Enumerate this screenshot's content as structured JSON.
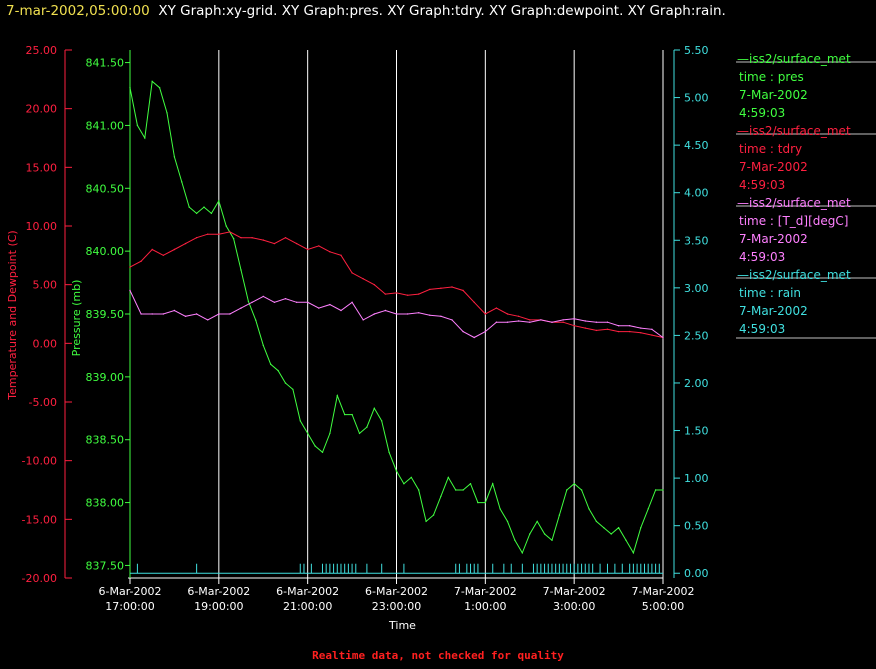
{
  "header": {
    "datetime": "7-mar-2002,05:00:00",
    "graph_list": "XY Graph:xy-grid.  XY Graph:pres.  XY Graph:tdry.  XY Graph:dewpoint.  XY Graph:rain."
  },
  "footer": {
    "note": "Realtime data, not checked for quality"
  },
  "colors": {
    "pres": "#40ff40",
    "tdry": "#ff2040",
    "dewpoint": "#ff80ff",
    "rain": "#40e0e0",
    "grid": "#ffffff"
  },
  "chart_data": {
    "type": "line",
    "xlabel": "Time",
    "x_range": [
      "6-Mar-2002 17:00:00",
      "7-Mar-2002 05:00:00"
    ],
    "x_ticks": [
      {
        "date": "6-Mar-2002",
        "time": "17:00:00"
      },
      {
        "date": "6-Mar-2002",
        "time": "19:00:00"
      },
      {
        "date": "6-Mar-2002",
        "time": "21:00:00"
      },
      {
        "date": "6-Mar-2002",
        "time": "23:00:00"
      },
      {
        "date": "7-Mar-2002",
        "time": "1:00:00"
      },
      {
        "date": "7-Mar-2002",
        "time": "3:00:00"
      },
      {
        "date": "7-Mar-2002",
        "time": "5:00:00"
      }
    ],
    "grid": true,
    "axes": {
      "temperature": {
        "label": "Temperature and Dewpoint (C)",
        "ylim": [
          -20,
          25
        ],
        "ticks": [
          "25.00",
          "20.00",
          "15.00",
          "10.00",
          "5.00",
          "0.00",
          "-5.00",
          "-10.00",
          "-15.00",
          "-20.00"
        ]
      },
      "pressure": {
        "label": "Pressure (mb)",
        "ylim": [
          837.4,
          841.6
        ],
        "ticks": [
          "841.50",
          "841.00",
          "840.50",
          "840.00",
          "839.50",
          "839.00",
          "838.50",
          "838.00",
          "837.50"
        ]
      },
      "rain": {
        "label": "",
        "ylim": [
          -0.05,
          5.5
        ],
        "ticks": [
          "5.50",
          "5.00",
          "4.50",
          "4.00",
          "3.50",
          "3.00",
          "2.50",
          "2.00",
          "1.50",
          "1.00",
          "0.50",
          "0.00"
        ]
      }
    },
    "series": [
      {
        "name": "pres",
        "axis": "pressure",
        "legend": [
          "iss2/surface_met",
          "time : pres",
          "7-Mar-2002",
          "4:59:03"
        ],
        "x": [
          "6-Mar-2002 17:00",
          "6-Mar-2002 17:10",
          "6-Mar-2002 17:20",
          "6-Mar-2002 17:30",
          "6-Mar-2002 17:40",
          "6-Mar-2002 17:50",
          "6-Mar-2002 18:00",
          "6-Mar-2002 18:10",
          "6-Mar-2002 18:20",
          "6-Mar-2002 18:30",
          "6-Mar-2002 18:40",
          "6-Mar-2002 18:50",
          "6-Mar-2002 19:00",
          "6-Mar-2002 19:10",
          "6-Mar-2002 19:20",
          "6-Mar-2002 19:30",
          "6-Mar-2002 19:40",
          "6-Mar-2002 19:50",
          "6-Mar-2002 20:00",
          "6-Mar-2002 20:10",
          "6-Mar-2002 20:20",
          "6-Mar-2002 20:30",
          "6-Mar-2002 20:40",
          "6-Mar-2002 20:50",
          "6-Mar-2002 21:00",
          "6-Mar-2002 21:10",
          "6-Mar-2002 21:20",
          "6-Mar-2002 21:30",
          "6-Mar-2002 21:40",
          "6-Mar-2002 21:50",
          "6-Mar-2002 22:00",
          "6-Mar-2002 22:10",
          "6-Mar-2002 22:20",
          "6-Mar-2002 22:30",
          "6-Mar-2002 22:40",
          "6-Mar-2002 22:50",
          "6-Mar-2002 23:00",
          "6-Mar-2002 23:10",
          "6-Mar-2002 23:20",
          "6-Mar-2002 23:30",
          "6-Mar-2002 23:40",
          "6-Mar-2002 23:50",
          "7-Mar-2002 00:00",
          "7-Mar-2002 00:10",
          "7-Mar-2002 00:20",
          "7-Mar-2002 00:30",
          "7-Mar-2002 00:40",
          "7-Mar-2002 00:50",
          "7-Mar-2002 01:00",
          "7-Mar-2002 01:10",
          "7-Mar-2002 01:20",
          "7-Mar-2002 01:30",
          "7-Mar-2002 01:40",
          "7-Mar-2002 01:50",
          "7-Mar-2002 02:00",
          "7-Mar-2002 02:10",
          "7-Mar-2002 02:20",
          "7-Mar-2002 02:30",
          "7-Mar-2002 02:40",
          "7-Mar-2002 02:50",
          "7-Mar-2002 03:00",
          "7-Mar-2002 03:10",
          "7-Mar-2002 03:20",
          "7-Mar-2002 03:30",
          "7-Mar-2002 03:40",
          "7-Mar-2002 03:50",
          "7-Mar-2002 04:00",
          "7-Mar-2002 04:10",
          "7-Mar-2002 04:20",
          "7-Mar-2002 04:30",
          "7-Mar-2002 04:40",
          "7-Mar-2002 04:50",
          "7-Mar-2002 05:00"
        ],
        "values": [
          841.3,
          841.0,
          840.9,
          841.35,
          841.3,
          841.1,
          840.75,
          840.55,
          840.35,
          840.3,
          840.35,
          840.3,
          840.4,
          840.2,
          840.1,
          839.85,
          839.6,
          839.45,
          839.25,
          839.1,
          839.05,
          838.95,
          838.9,
          838.65,
          838.55,
          838.45,
          838.4,
          838.55,
          838.85,
          838.7,
          838.7,
          838.55,
          838.6,
          838.75,
          838.65,
          838.4,
          838.25,
          838.15,
          838.2,
          838.1,
          837.85,
          837.9,
          838.05,
          838.2,
          838.1,
          838.1,
          838.15,
          838.0,
          838.0,
          838.15,
          837.95,
          837.85,
          837.7,
          837.6,
          837.75,
          837.85,
          837.75,
          837.7,
          837.9,
          838.1,
          838.15,
          838.1,
          837.95,
          837.85,
          837.8,
          837.75,
          837.8,
          837.7,
          837.6,
          837.8,
          837.95,
          838.1,
          838.1
        ]
      },
      {
        "name": "tdry",
        "axis": "temperature",
        "legend": [
          "iss2/surface_met",
          "time : tdry",
          "7-Mar-2002",
          "4:59:03"
        ],
        "x": [
          "6-Mar-2002 17:00",
          "6-Mar-2002 17:15",
          "6-Mar-2002 17:30",
          "6-Mar-2002 17:45",
          "6-Mar-2002 18:00",
          "6-Mar-2002 18:15",
          "6-Mar-2002 18:30",
          "6-Mar-2002 18:45",
          "6-Mar-2002 19:00",
          "6-Mar-2002 19:15",
          "6-Mar-2002 19:30",
          "6-Mar-2002 19:45",
          "6-Mar-2002 20:00",
          "6-Mar-2002 20:15",
          "6-Mar-2002 20:30",
          "6-Mar-2002 20:45",
          "6-Mar-2002 21:00",
          "6-Mar-2002 21:15",
          "6-Mar-2002 21:30",
          "6-Mar-2002 21:45",
          "6-Mar-2002 22:00",
          "6-Mar-2002 22:15",
          "6-Mar-2002 22:30",
          "6-Mar-2002 22:45",
          "6-Mar-2002 23:00",
          "6-Mar-2002 23:15",
          "6-Mar-2002 23:30",
          "6-Mar-2002 23:45",
          "7-Mar-2002 00:00",
          "7-Mar-2002 00:15",
          "7-Mar-2002 00:30",
          "7-Mar-2002 00:45",
          "7-Mar-2002 01:00",
          "7-Mar-2002 01:15",
          "7-Mar-2002 01:30",
          "7-Mar-2002 01:45",
          "7-Mar-2002 02:00",
          "7-Mar-2002 02:15",
          "7-Mar-2002 02:30",
          "7-Mar-2002 02:45",
          "7-Mar-2002 03:00",
          "7-Mar-2002 03:15",
          "7-Mar-2002 03:30",
          "7-Mar-2002 03:45",
          "7-Mar-2002 04:00",
          "7-Mar-2002 04:15",
          "7-Mar-2002 04:30",
          "7-Mar-2002 04:45",
          "7-Mar-2002 05:00"
        ],
        "values": [
          6.5,
          7.0,
          8.0,
          7.5,
          8.0,
          8.5,
          9.0,
          9.3,
          9.3,
          9.5,
          9.0,
          9.0,
          8.8,
          8.5,
          9.0,
          8.5,
          8.0,
          8.3,
          7.8,
          7.5,
          6.0,
          5.5,
          5.0,
          4.2,
          4.3,
          4.1,
          4.2,
          4.6,
          4.7,
          4.8,
          4.5,
          3.5,
          2.5,
          3.0,
          2.5,
          2.3,
          2.0,
          2.0,
          1.8,
          1.8,
          1.5,
          1.3,
          1.1,
          1.2,
          1.0,
          1.0,
          0.9,
          0.7,
          0.5
        ]
      },
      {
        "name": "dewpoint",
        "axis": "temperature",
        "legend": [
          "iss2/surface_met",
          "time : [T_d][degC]",
          "7-Mar-2002",
          "4:59:03"
        ],
        "x": [
          "6-Mar-2002 17:00",
          "6-Mar-2002 17:15",
          "6-Mar-2002 17:30",
          "6-Mar-2002 17:45",
          "6-Mar-2002 18:00",
          "6-Mar-2002 18:15",
          "6-Mar-2002 18:30",
          "6-Mar-2002 18:45",
          "6-Mar-2002 19:00",
          "6-Mar-2002 19:15",
          "6-Mar-2002 19:30",
          "6-Mar-2002 19:45",
          "6-Mar-2002 20:00",
          "6-Mar-2002 20:15",
          "6-Mar-2002 20:30",
          "6-Mar-2002 20:45",
          "6-Mar-2002 21:00",
          "6-Mar-2002 21:15",
          "6-Mar-2002 21:30",
          "6-Mar-2002 21:45",
          "6-Mar-2002 22:00",
          "6-Mar-2002 22:15",
          "6-Mar-2002 22:30",
          "6-Mar-2002 22:45",
          "6-Mar-2002 23:00",
          "6-Mar-2002 23:15",
          "6-Mar-2002 23:30",
          "6-Mar-2002 23:45",
          "7-Mar-2002 00:00",
          "7-Mar-2002 00:15",
          "7-Mar-2002 00:30",
          "7-Mar-2002 00:45",
          "7-Mar-2002 01:00",
          "7-Mar-2002 01:15",
          "7-Mar-2002 01:30",
          "7-Mar-2002 01:45",
          "7-Mar-2002 02:00",
          "7-Mar-2002 02:15",
          "7-Mar-2002 02:30",
          "7-Mar-2002 02:45",
          "7-Mar-2002 03:00",
          "7-Mar-2002 03:15",
          "7-Mar-2002 03:30",
          "7-Mar-2002 03:45",
          "7-Mar-2002 04:00",
          "7-Mar-2002 04:15",
          "7-Mar-2002 04:30",
          "7-Mar-2002 04:45",
          "7-Mar-2002 05:00"
        ],
        "values": [
          4.5,
          2.5,
          2.5,
          2.5,
          2.8,
          2.3,
          2.5,
          2.0,
          2.5,
          2.5,
          3.0,
          3.5,
          4.0,
          3.5,
          3.8,
          3.5,
          3.5,
          3.0,
          3.3,
          2.8,
          3.5,
          2.0,
          2.5,
          2.8,
          2.5,
          2.5,
          2.6,
          2.4,
          2.3,
          2.0,
          1.0,
          0.5,
          1.0,
          1.8,
          1.8,
          1.9,
          1.8,
          2.0,
          1.8,
          2.0,
          2.1,
          1.9,
          1.8,
          1.8,
          1.5,
          1.5,
          1.3,
          1.2,
          0.5
        ]
      },
      {
        "name": "rain",
        "axis": "rain",
        "legend": [
          "iss2/surface_met",
          "time : rain",
          "7-Mar-2002",
          "4:59:03"
        ],
        "baseline": 0.0,
        "spike_value": 0.1,
        "spike_times": [
          "6-Mar-2002 17:10",
          "6-Mar-2002 18:30",
          "6-Mar-2002 20:50",
          "6-Mar-2002 20:55",
          "6-Mar-2002 21:05",
          "6-Mar-2002 21:20",
          "6-Mar-2002 21:25",
          "6-Mar-2002 21:30",
          "6-Mar-2002 21:35",
          "6-Mar-2002 21:40",
          "6-Mar-2002 21:45",
          "6-Mar-2002 21:50",
          "6-Mar-2002 21:55",
          "6-Mar-2002 22:00",
          "6-Mar-2002 22:05",
          "6-Mar-2002 22:20",
          "6-Mar-2002 22:40",
          "6-Mar-2002 23:10",
          "7-Mar-2002 00:20",
          "7-Mar-2002 00:25",
          "7-Mar-2002 00:35",
          "7-Mar-2002 00:40",
          "7-Mar-2002 00:45",
          "7-Mar-2002 00:50",
          "7-Mar-2002 01:10",
          "7-Mar-2002 01:25",
          "7-Mar-2002 01:35",
          "7-Mar-2002 01:50",
          "7-Mar-2002 02:05",
          "7-Mar-2002 02:10",
          "7-Mar-2002 02:15",
          "7-Mar-2002 02:20",
          "7-Mar-2002 02:25",
          "7-Mar-2002 02:30",
          "7-Mar-2002 02:35",
          "7-Mar-2002 02:40",
          "7-Mar-2002 02:45",
          "7-Mar-2002 02:50",
          "7-Mar-2002 02:55",
          "7-Mar-2002 03:00",
          "7-Mar-2002 03:05",
          "7-Mar-2002 03:10",
          "7-Mar-2002 03:15",
          "7-Mar-2002 03:20",
          "7-Mar-2002 03:25",
          "7-Mar-2002 03:35",
          "7-Mar-2002 03:45",
          "7-Mar-2002 03:55",
          "7-Mar-2002 04:05",
          "7-Mar-2002 04:15",
          "7-Mar-2002 04:20",
          "7-Mar-2002 04:25",
          "7-Mar-2002 04:30",
          "7-Mar-2002 04:35",
          "7-Mar-2002 04:40",
          "7-Mar-2002 04:45",
          "7-Mar-2002 04:50",
          "7-Mar-2002 04:55"
        ]
      }
    ]
  }
}
